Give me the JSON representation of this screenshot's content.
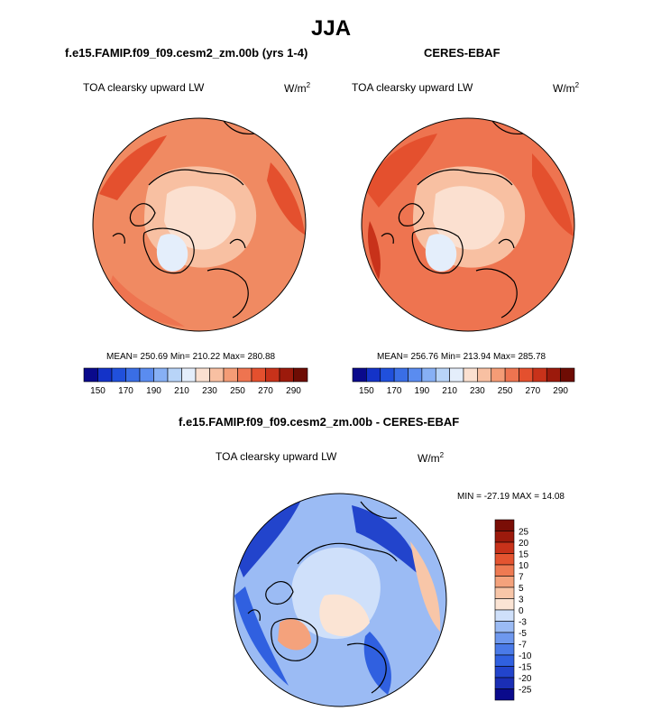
{
  "figure": {
    "title": "JJA"
  },
  "panels": {
    "model": {
      "title": "f.e15.FAMIP.f09_f09.cesm2_zm.00b (yrs 1-4)",
      "field": "TOA clearsky upward LW",
      "units": "W/m",
      "units_exp": "2",
      "stats": "MEAN= 250.69  Min= 210.22  Max= 280.88"
    },
    "obs": {
      "title": "CERES-EBAF",
      "field": "TOA clearsky upward LW",
      "units": "W/m",
      "units_exp": "2",
      "stats": "MEAN= 256.76  Min= 213.94  Max= 285.78"
    },
    "diff": {
      "title": "f.e15.FAMIP.f09_f09.cesm2_zm.00b - CERES-EBAF",
      "field": "TOA clearsky upward LW",
      "units": "W/m",
      "units_exp": "2",
      "stats": "MIN = -27.19 MAX =  14.08"
    }
  },
  "chart_data": [
    {
      "type": "heatmap",
      "projection": "north-polar-stereographic",
      "title": "f.e15.FAMIP.f09_f09.cesm2_zm.00b (yrs 1-4)",
      "variable": "TOA clearsky upward LW",
      "units": "W/m2",
      "mean": 250.69,
      "min": 210.22,
      "max": 280.88,
      "colorbar": {
        "orientation": "horizontal",
        "levels": [
          150,
          160,
          170,
          180,
          190,
          200,
          210,
          220,
          230,
          240,
          250,
          260,
          270,
          280,
          290
        ],
        "tick_labels": [
          "150",
          "170",
          "190",
          "210",
          "230",
          "250",
          "270",
          "290"
        ],
        "colors": [
          "#0a0a8c",
          "#1433c8",
          "#2050dc",
          "#3a6ee6",
          "#5a8cf0",
          "#87b0f5",
          "#b8d4f8",
          "#e4eefb",
          "#fbe0d0",
          "#f8c0a2",
          "#f49c76",
          "#ee7450",
          "#e4502e",
          "#c8321a",
          "#9c1a0c",
          "#6e0c04"
        ]
      }
    },
    {
      "type": "heatmap",
      "projection": "north-polar-stereographic",
      "title": "CERES-EBAF",
      "variable": "TOA clearsky upward LW",
      "units": "W/m2",
      "mean": 256.76,
      "min": 213.94,
      "max": 285.78,
      "colorbar": {
        "orientation": "horizontal",
        "levels": [
          150,
          160,
          170,
          180,
          190,
          200,
          210,
          220,
          230,
          240,
          250,
          260,
          270,
          280,
          290
        ],
        "tick_labels": [
          "150",
          "170",
          "190",
          "210",
          "230",
          "250",
          "270",
          "290"
        ],
        "colors": [
          "#0a0a8c",
          "#1433c8",
          "#2050dc",
          "#3a6ee6",
          "#5a8cf0",
          "#87b0f5",
          "#b8d4f8",
          "#e4eefb",
          "#fbe0d0",
          "#f8c0a2",
          "#f49c76",
          "#ee7450",
          "#e4502e",
          "#c8321a",
          "#9c1a0c",
          "#6e0c04"
        ]
      }
    },
    {
      "type": "heatmap",
      "projection": "north-polar-stereographic",
      "title": "f.e15.FAMIP.f09_f09.cesm2_zm.00b - CERES-EBAF",
      "variable": "TOA clearsky upward LW",
      "units": "W/m2",
      "min": -27.19,
      "max": 14.08,
      "colorbar": {
        "orientation": "vertical",
        "levels": [
          -25,
          -20,
          -15,
          -10,
          -7,
          -5,
          -3,
          0,
          3,
          5,
          7,
          10,
          15,
          20,
          25
        ],
        "tick_labels": [
          "25",
          "20",
          "15",
          "10",
          "7",
          "5",
          "3",
          "0",
          "-3",
          "-5",
          "-7",
          "-10",
          "-15",
          "-20",
          "-25"
        ],
        "colors": [
          "#0a0a8c",
          "#1a2eb4",
          "#2244cc",
          "#3060e0",
          "#4a7ae8",
          "#6e98ee",
          "#9bbbf4",
          "#cfe0fa",
          "#fbe4d4",
          "#f8c6a8",
          "#f4a27c",
          "#ee7a52",
          "#e45430",
          "#c8321a",
          "#9c1a0c",
          "#7a0e06"
        ]
      }
    }
  ]
}
